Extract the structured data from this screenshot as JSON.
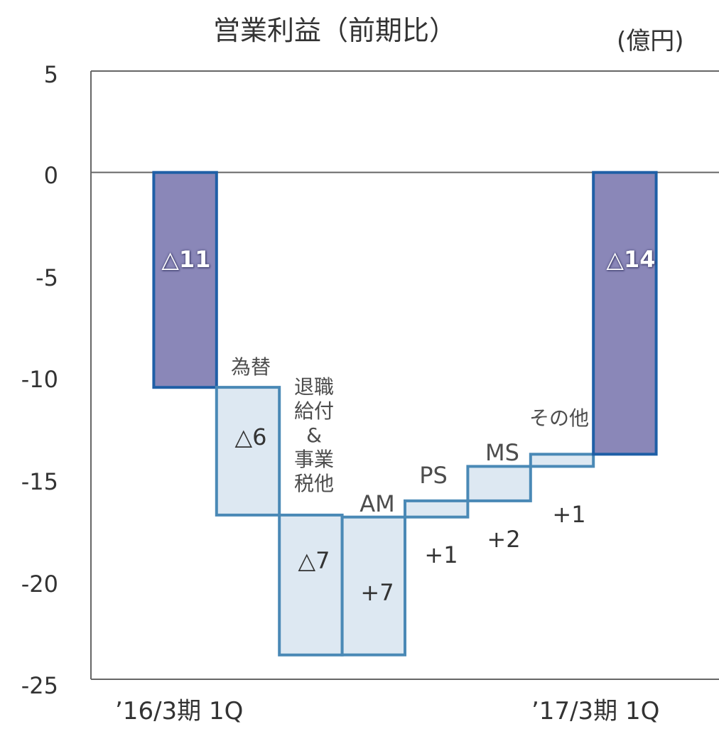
{
  "chart_data": {
    "type": "waterfall",
    "title": "営業利益（前期比）",
    "unit": "(億円)",
    "ylim": [
      -25,
      5
    ],
    "yticks": [
      "5",
      "0",
      "-5",
      "-10",
      "-15",
      "-20",
      "-25"
    ],
    "x_tick_labels": [
      "’16/3期 1Q",
      "’17/3期 1Q"
    ],
    "bars": [
      {
        "kind": "total",
        "label": "",
        "start": 0,
        "end": -10.6,
        "value_label": "△11"
      },
      {
        "kind": "delta",
        "label": "為替",
        "start": -10.6,
        "end": -16.9,
        "value_label": "△6"
      },
      {
        "kind": "delta",
        "label": "退職\n給付\n&\n事業\n税他",
        "start": -16.9,
        "end": -23.8,
        "value_label": "△7"
      },
      {
        "kind": "delta",
        "label": "AM",
        "start": -23.8,
        "end": -17.0,
        "value_label": "+7"
      },
      {
        "kind": "delta",
        "label": "PS",
        "start": -17.0,
        "end": -16.2,
        "value_label": "+1"
      },
      {
        "kind": "delta",
        "label": "MS",
        "start": -16.2,
        "end": -14.5,
        "value_label": "+2"
      },
      {
        "kind": "delta",
        "label": "その他",
        "start": -14.5,
        "end": -13.9,
        "value_label": "+1"
      },
      {
        "kind": "total",
        "label": "",
        "start": 0,
        "end": -13.9,
        "value_label": "△14"
      }
    ],
    "colors": {
      "total_fill": "#8a87b8",
      "total_edge": "#1f5fa6",
      "delta_fill": "#dde8f2",
      "delta_edge": "#4a89b6",
      "axis": "#666666"
    }
  }
}
